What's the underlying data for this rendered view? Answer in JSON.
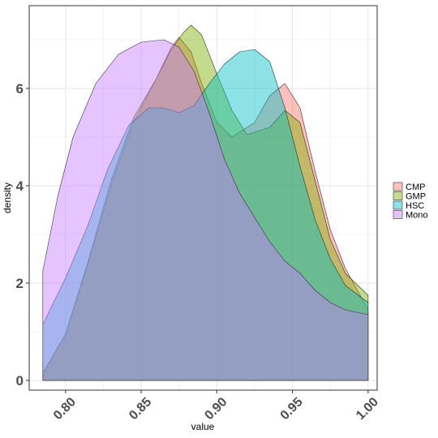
{
  "chart_data": {
    "type": "area",
    "xlabel": "value",
    "ylabel": "density",
    "xlim": [
      0.776,
      1.006
    ],
    "ylim": [
      -0.2,
      7.7
    ],
    "x_ticks": [
      0.8,
      0.85,
      0.9,
      0.95,
      1.0
    ],
    "x_tick_labels": [
      "0.80",
      "0.85",
      "0.90",
      "0.95",
      "1.00"
    ],
    "y_ticks": [
      0,
      2,
      4,
      6
    ],
    "y_tick_labels": [
      "0",
      "2",
      "4",
      "6"
    ],
    "grid": true,
    "legend_position": "right",
    "fill_opacity": 0.45,
    "series": [
      {
        "name": "CMP",
        "color": "#F8766D",
        "points": [
          [
            0.785,
            0.15
          ],
          [
            0.8,
            0.95
          ],
          [
            0.815,
            2.4
          ],
          [
            0.83,
            4.0
          ],
          [
            0.845,
            5.3
          ],
          [
            0.86,
            6.2
          ],
          [
            0.87,
            6.85
          ],
          [
            0.875,
            7.05
          ],
          [
            0.883,
            6.75
          ],
          [
            0.89,
            6.1
          ],
          [
            0.9,
            5.3
          ],
          [
            0.91,
            5.0
          ],
          [
            0.925,
            5.3
          ],
          [
            0.935,
            5.85
          ],
          [
            0.945,
            6.1
          ],
          [
            0.955,
            5.6
          ],
          [
            0.965,
            4.3
          ],
          [
            0.975,
            3.1
          ],
          [
            0.985,
            2.3
          ],
          [
            1.0,
            1.45
          ]
        ]
      },
      {
        "name": "GMP",
        "color": "#7CAE00",
        "points": [
          [
            0.785,
            0.15
          ],
          [
            0.8,
            0.95
          ],
          [
            0.815,
            2.45
          ],
          [
            0.83,
            4.1
          ],
          [
            0.845,
            5.4
          ],
          [
            0.86,
            6.2
          ],
          [
            0.87,
            6.8
          ],
          [
            0.878,
            7.15
          ],
          [
            0.883,
            7.3
          ],
          [
            0.89,
            7.1
          ],
          [
            0.9,
            6.3
          ],
          [
            0.91,
            5.55
          ],
          [
            0.92,
            5.05
          ],
          [
            0.935,
            5.2
          ],
          [
            0.945,
            5.55
          ],
          [
            0.955,
            5.3
          ],
          [
            0.965,
            4.1
          ],
          [
            0.975,
            2.9
          ],
          [
            0.985,
            2.2
          ],
          [
            1.0,
            1.75
          ]
        ]
      },
      {
        "name": "HSC",
        "color": "#00BFC4",
        "points": [
          [
            0.785,
            1.15
          ],
          [
            0.8,
            2.1
          ],
          [
            0.815,
            3.2
          ],
          [
            0.828,
            4.35
          ],
          [
            0.842,
            5.25
          ],
          [
            0.855,
            5.6
          ],
          [
            0.865,
            5.6
          ],
          [
            0.875,
            5.5
          ],
          [
            0.885,
            5.65
          ],
          [
            0.895,
            6.1
          ],
          [
            0.905,
            6.5
          ],
          [
            0.915,
            6.75
          ],
          [
            0.925,
            6.8
          ],
          [
            0.935,
            6.55
          ],
          [
            0.945,
            5.6
          ],
          [
            0.955,
            4.4
          ],
          [
            0.965,
            3.3
          ],
          [
            0.975,
            2.5
          ],
          [
            0.985,
            1.95
          ],
          [
            1.0,
            1.6
          ]
        ]
      },
      {
        "name": "Mono",
        "color": "#C77CFF",
        "points": [
          [
            0.785,
            2.25
          ],
          [
            0.795,
            3.8
          ],
          [
            0.805,
            5.0
          ],
          [
            0.82,
            6.1
          ],
          [
            0.835,
            6.7
          ],
          [
            0.85,
            6.95
          ],
          [
            0.865,
            7.0
          ],
          [
            0.875,
            6.85
          ],
          [
            0.885,
            6.35
          ],
          [
            0.895,
            5.5
          ],
          [
            0.905,
            4.55
          ],
          [
            0.915,
            3.85
          ],
          [
            0.925,
            3.35
          ],
          [
            0.935,
            2.85
          ],
          [
            0.945,
            2.45
          ],
          [
            0.955,
            2.2
          ],
          [
            0.965,
            1.85
          ],
          [
            0.975,
            1.6
          ],
          [
            0.985,
            1.45
          ],
          [
            1.0,
            1.35
          ]
        ]
      }
    ]
  }
}
